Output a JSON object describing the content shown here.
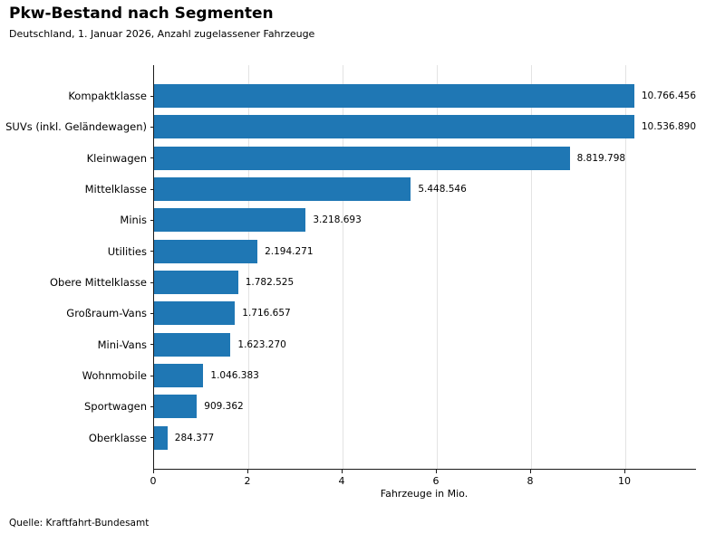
{
  "header": {
    "title": "Pkw-Bestand nach Segmenten",
    "subtitle": "Deutschland, 1. Januar 2026, Anzahl zugelassener Fahrzeuge"
  },
  "chart_data": {
    "type": "bar",
    "orientation": "horizontal",
    "title": "Pkw-Bestand nach Segmenten",
    "subtitle": "Deutschland, 1. Januar 2026, Anzahl zugelassener Fahrzeuge",
    "categories": [
      "Kompaktklasse",
      "SUVs (inkl. Geländewagen)",
      "Kleinwagen",
      "Mittelklasse",
      "Minis",
      "Utilities",
      "Obere Mittelklasse",
      "Großraum-Vans",
      "Mini-Vans",
      "Wohnmobile",
      "Sportwagen",
      "Oberklasse"
    ],
    "values": [
      10766456,
      10536890,
      8819798,
      5448546,
      3218693,
      2194271,
      1782525,
      1716657,
      1623270,
      1046383,
      909362,
      284377
    ],
    "value_labels": [
      "10.766.456",
      "10.536.890",
      "8.819.798",
      "5.448.546",
      "3.218.693",
      "2.194.271",
      "1.782.525",
      "1.716.657",
      "1.623.270",
      "1.046.383",
      "909.362",
      "284.377"
    ],
    "xlabel": "Fahrzeuge in Mio.",
    "xlim_mio": [
      0,
      11.5
    ],
    "xticks": [
      0,
      2,
      4,
      6,
      8,
      10
    ],
    "xtick_labels": [
      "0",
      "2",
      "4",
      "6",
      "8",
      "10"
    ],
    "grid": "vertical gridlines at major x ticks",
    "legend": "none"
  },
  "footer": {
    "source": "Quelle: Kraftfahrt-Bundesamt"
  },
  "colors": {
    "bar": "#1f77b4",
    "axis": "#1a1a1a",
    "grid": "#e3e3e3",
    "text": "#000000",
    "background": "#ffffff"
  }
}
